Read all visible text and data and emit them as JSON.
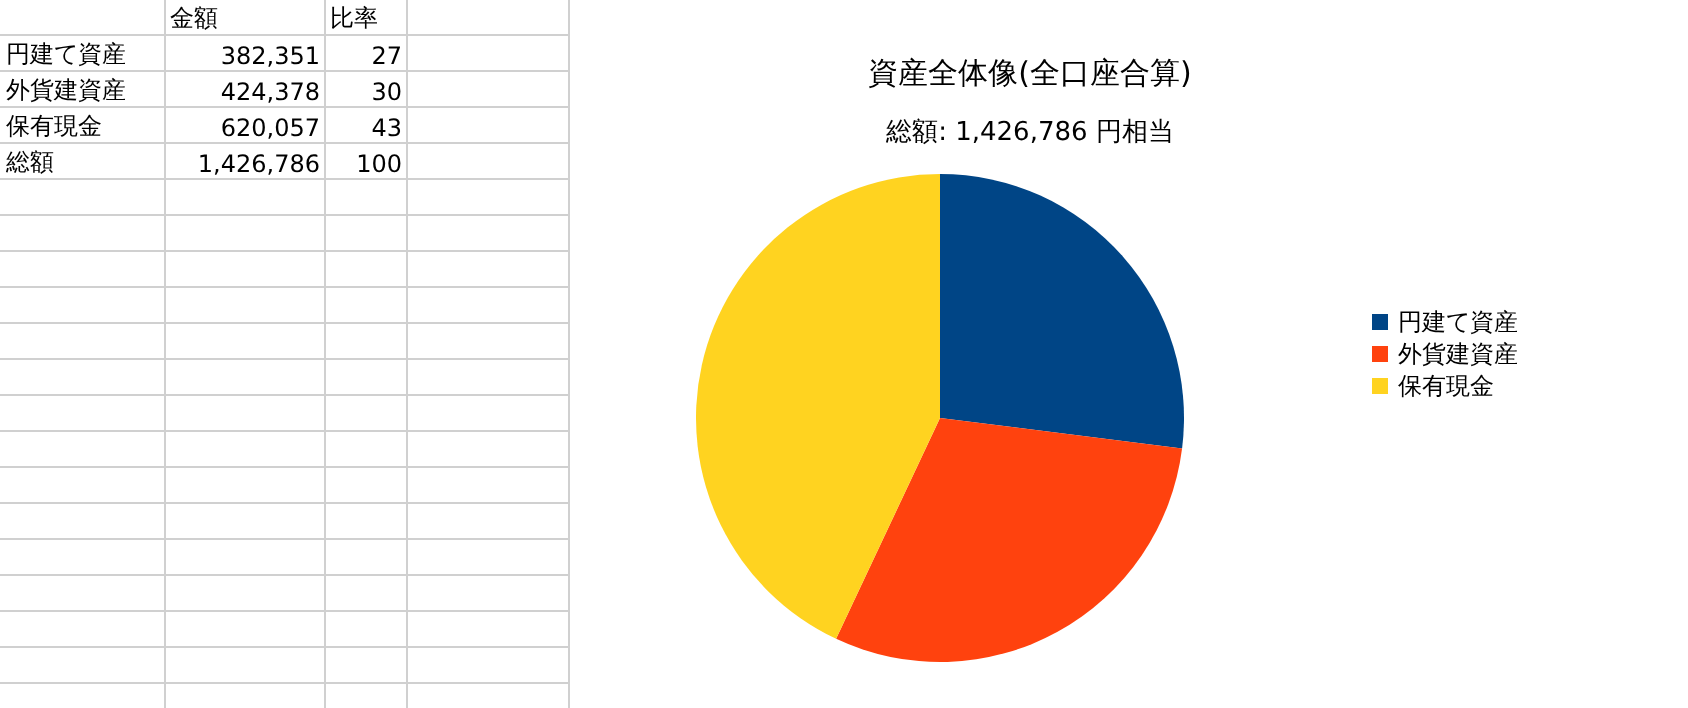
{
  "chart_data": {
    "type": "pie",
    "title": "資産全体像(全口座合算)",
    "subtitle": "総額: 1,426,786 円相当",
    "categories": [
      "円建て資産",
      "外貨建資産",
      "保有現金"
    ],
    "values": [
      27,
      30,
      43
    ],
    "colors": [
      "#004586",
      "#ff420e",
      "#ffd320"
    ],
    "annotations": [
      "金額",
      "比率",
      "382,351",
      "27",
      "424,378",
      "30",
      "620,057",
      "43",
      "総額",
      "1,426,786",
      "100"
    ],
    "legend": "right"
  }
}
